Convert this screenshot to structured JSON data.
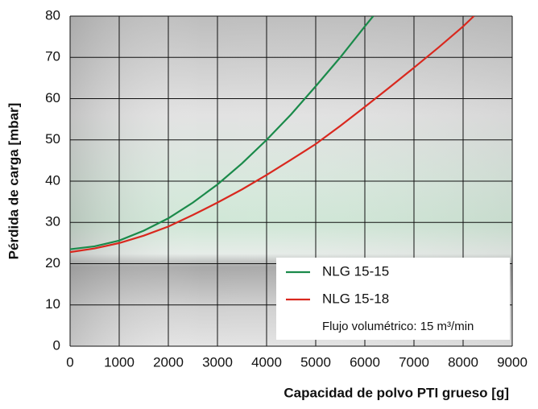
{
  "chart_data": {
    "type": "line",
    "xlabel": "Capacidad de polvo PTI grueso [g]",
    "ylabel": "Pérdida de carga [mbar]",
    "xlim": [
      0,
      9000
    ],
    "xticks": [
      0,
      1000,
      2000,
      3000,
      4000,
      5000,
      6000,
      7000,
      8000,
      9000
    ],
    "ylim": [
      0,
      80
    ],
    "yticks": [
      0,
      10,
      20,
      30,
      40,
      50,
      60,
      70,
      80
    ],
    "grid": true,
    "legend": "lower right",
    "legend_note": "Flujo volumétrico: 15 m³/min",
    "series": [
      {
        "name": "NLG 15-15",
        "color": "#1a8a4a",
        "x": [
          0,
          500,
          1000,
          1500,
          2000,
          2500,
          3000,
          3500,
          4000,
          4500,
          5000,
          5500,
          6000,
          6170
        ],
        "values": [
          23.5,
          24.2,
          25.6,
          28,
          31,
          34.8,
          39.2,
          44.3,
          50,
          56.2,
          63,
          70,
          77.5,
          80
        ]
      },
      {
        "name": "NLG 15-18",
        "color": "#d9281e",
        "x": [
          0,
          500,
          1000,
          1500,
          2000,
          2500,
          3000,
          3500,
          4000,
          4500,
          5000,
          5500,
          6000,
          6500,
          7000,
          7500,
          8000,
          8220
        ],
        "values": [
          22.8,
          23.7,
          25,
          26.8,
          29,
          31.8,
          34.8,
          38,
          41.5,
          45.2,
          49,
          53.4,
          58,
          62.7,
          67.5,
          72.4,
          77.5,
          80
        ]
      }
    ]
  }
}
